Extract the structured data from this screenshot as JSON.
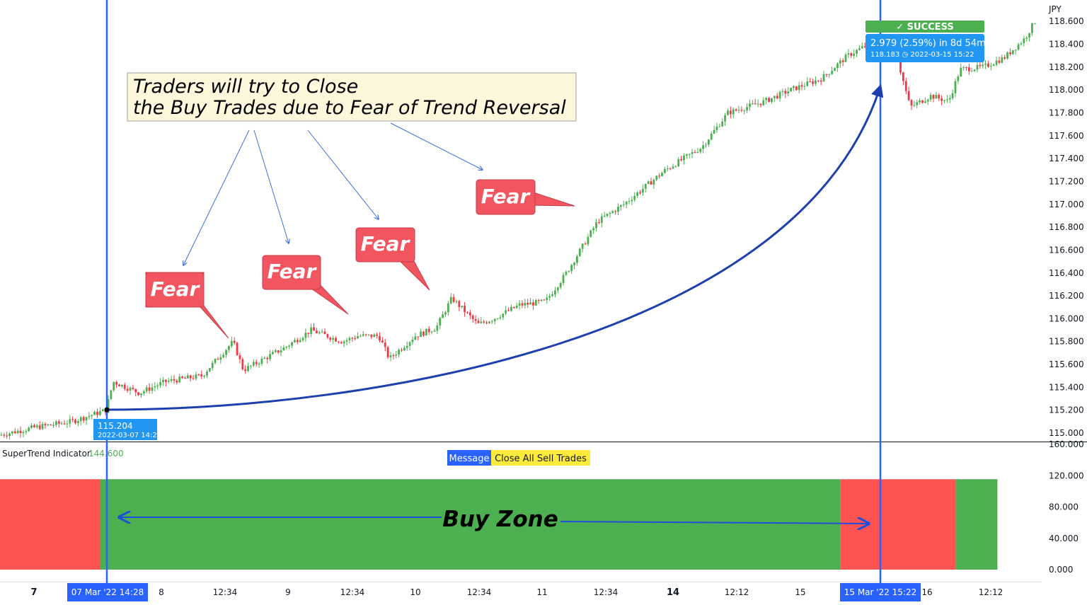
{
  "chart_data": {
    "type": "candlestick",
    "currency_label": "JPY",
    "price_axis": {
      "range": [
        114.95,
        118.7
      ],
      "ticks": [
        115.0,
        115.2,
        115.4,
        115.6,
        115.8,
        116.0,
        116.2,
        116.4,
        116.6,
        116.8,
        117.0,
        117.2,
        117.4,
        117.6,
        117.8,
        118.0,
        118.2,
        118.4,
        118.6
      ],
      "tick_labels": [
        "115.000",
        "115.200",
        "115.400",
        "115.600",
        "115.800",
        "116.000",
        "116.200",
        "116.400",
        "116.600",
        "116.800",
        "117.000",
        "117.200",
        "117.400",
        "117.600",
        "117.800",
        "118.000",
        "118.200",
        "118.400",
        "118.600"
      ]
    },
    "indicator_axis": {
      "range": [
        0,
        160
      ],
      "ticks": [
        0,
        40,
        80,
        120,
        160
      ],
      "tick_labels": [
        "0.000",
        "40.000",
        "80.000",
        "120.000",
        "160.000"
      ]
    },
    "time_axis": [
      {
        "label": "7",
        "bold": true
      },
      {
        "label": "8",
        "bold": false
      },
      {
        "label": "12:34",
        "bold": false
      },
      {
        "label": "9",
        "bold": false
      },
      {
        "label": "12:34",
        "bold": false
      },
      {
        "label": "10",
        "bold": false
      },
      {
        "label": "12:34",
        "bold": false
      },
      {
        "label": "11",
        "bold": false
      },
      {
        "label": "12:34",
        "bold": false
      },
      {
        "label": "14",
        "bold": true
      },
      {
        "label": "12:12",
        "bold": false
      },
      {
        "label": "15",
        "bold": false
      },
      {
        "label": "16",
        "bold": false
      },
      {
        "label": "12:12",
        "bold": false
      }
    ],
    "price_path_keypoints": [
      {
        "t": 0.0,
        "p": 114.98
      },
      {
        "t": 0.035,
        "p": 115.05
      },
      {
        "t": 0.07,
        "p": 115.1
      },
      {
        "t": 0.103,
        "p": 115.2
      },
      {
        "t": 0.11,
        "p": 115.45
      },
      {
        "t": 0.135,
        "p": 115.35
      },
      {
        "t": 0.16,
        "p": 115.45
      },
      {
        "t": 0.195,
        "p": 115.5
      },
      {
        "t": 0.225,
        "p": 115.8
      },
      {
        "t": 0.235,
        "p": 115.55
      },
      {
        "t": 0.275,
        "p": 115.75
      },
      {
        "t": 0.3,
        "p": 115.9
      },
      {
        "t": 0.33,
        "p": 115.8
      },
      {
        "t": 0.345,
        "p": 115.85
      },
      {
        "t": 0.365,
        "p": 115.85
      },
      {
        "t": 0.375,
        "p": 115.65
      },
      {
        "t": 0.4,
        "p": 115.85
      },
      {
        "t": 0.42,
        "p": 115.92
      },
      {
        "t": 0.435,
        "p": 116.18
      },
      {
        "t": 0.46,
        "p": 115.95
      },
      {
        "t": 0.475,
        "p": 116.0
      },
      {
        "t": 0.5,
        "p": 116.12
      },
      {
        "t": 0.525,
        "p": 116.15
      },
      {
        "t": 0.545,
        "p": 116.4
      },
      {
        "t": 0.575,
        "p": 116.85
      },
      {
        "t": 0.6,
        "p": 117.0
      },
      {
        "t": 0.64,
        "p": 117.3
      },
      {
        "t": 0.675,
        "p": 117.5
      },
      {
        "t": 0.7,
        "p": 117.8
      },
      {
        "t": 0.735,
        "p": 117.9
      },
      {
        "t": 0.76,
        "p": 118.0
      },
      {
        "t": 0.79,
        "p": 118.1
      },
      {
        "t": 0.815,
        "p": 118.3
      },
      {
        "t": 0.835,
        "p": 118.4
      },
      {
        "t": 0.845,
        "p": 118.33
      },
      {
        "t": 0.862,
        "p": 118.3
      },
      {
        "t": 0.875,
        "p": 117.85
      },
      {
        "t": 0.895,
        "p": 117.95
      },
      {
        "t": 0.912,
        "p": 117.9
      },
      {
        "t": 0.923,
        "p": 118.18
      },
      {
        "t": 0.945,
        "p": 118.2
      },
      {
        "t": 0.965,
        "p": 118.28
      },
      {
        "t": 0.985,
        "p": 118.45
      },
      {
        "t": 1.0,
        "p": 118.68
      }
    ],
    "supertrend": {
      "label": "SuperTrend Indicator",
      "value": "144.600",
      "zones": [
        {
          "color": "#ff5252",
          "from": 0.0,
          "to": 0.0958,
          "level": 120
        },
        {
          "color": "#4caf50",
          "from": 0.0958,
          "to": 0.8066,
          "level": 120
        },
        {
          "color": "#ff5252",
          "from": 0.8066,
          "to": 0.9174,
          "level": 120
        },
        {
          "color": "#4caf50",
          "from": 0.9174,
          "to": 0.9575,
          "level": 120
        }
      ]
    },
    "entry": {
      "price": "115.204",
      "time": "2022-03-07 14:28",
      "axis_label": "07 Mar '22  14:28"
    },
    "exit": {
      "price": "118.183",
      "time": "2022-03-15  15:22",
      "axis_label": "15 Mar '22  15:22"
    },
    "result": {
      "badge": "✓ SUCCESS",
      "summary": "2.979 (2.59%) in 8d 54m",
      "detail": "118.183 ◷ 2022-03-15  15:22"
    }
  },
  "annotations": {
    "note_lines": [
      "Traders will try to Close",
      "the Buy Trades due to Fear of Trend Reversal"
    ],
    "fear_label": "Fear",
    "buy_zone_label": "Buy Zone",
    "message_label": "Message",
    "message_text": "Close All Sell Trades"
  },
  "colors": {
    "bull": "#26a69a",
    "bull_green": "#4caf50",
    "bear": "#f23645",
    "fear_bg": "#f05560",
    "vline": "#2962ff",
    "curve": "#1e40af",
    "note_bg": "#fdf8dc",
    "success": "#4caf50",
    "info_blue": "#2196f3",
    "message_blue": "#2962ff",
    "message_yellow": "#ffeb3b"
  }
}
